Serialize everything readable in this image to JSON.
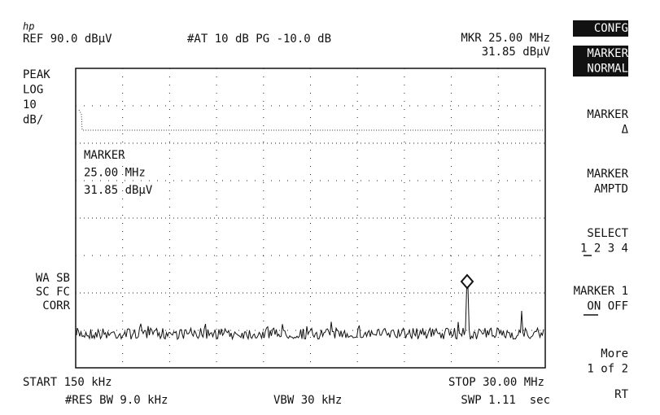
{
  "header": {
    "logo": "hp",
    "ref": "REF 90.0 dBµV",
    "attenuation": "#AT 10 dB PG -10.0 dB",
    "marker_freq": "MKR 25.00 MHz",
    "marker_amp": "31.85 dBµV"
  },
  "left_status": [
    "PEAK",
    "LOG",
    "10",
    "dB/"
  ],
  "left_flags": [
    "WA SB",
    "SC FC",
    "CORR"
  ],
  "marker_readout": [
    "MARKER",
    "25.00 MHz",
    "31.85 dBµV"
  ],
  "footer": {
    "start": "START 150 kHz",
    "stop": "STOP 30.00 MHz",
    "rbw": "#RES BW 9.0 kHz",
    "vbw": "VBW 30 kHz",
    "sweep": "SWP 1.11  sec"
  },
  "softkeys": [
    {
      "lines": [
        "CONFG"
      ],
      "inverted": true
    },
    {
      "lines": [
        "MARKER",
        "NORMAL"
      ],
      "inverted": true
    },
    {
      "lines": [
        "MARKER",
        "Δ"
      ]
    },
    {
      "lines": [
        "MARKER",
        "AMPTD"
      ]
    },
    {
      "lines": [
        "SELECT",
        "1 2 3 4"
      ]
    },
    {
      "lines": [
        "MARKER 1",
        "ON OFF"
      ]
    },
    {
      "lines": [
        "More",
        "1 of 2"
      ]
    },
    {
      "lines": [
        "RT"
      ]
    }
  ]
}
